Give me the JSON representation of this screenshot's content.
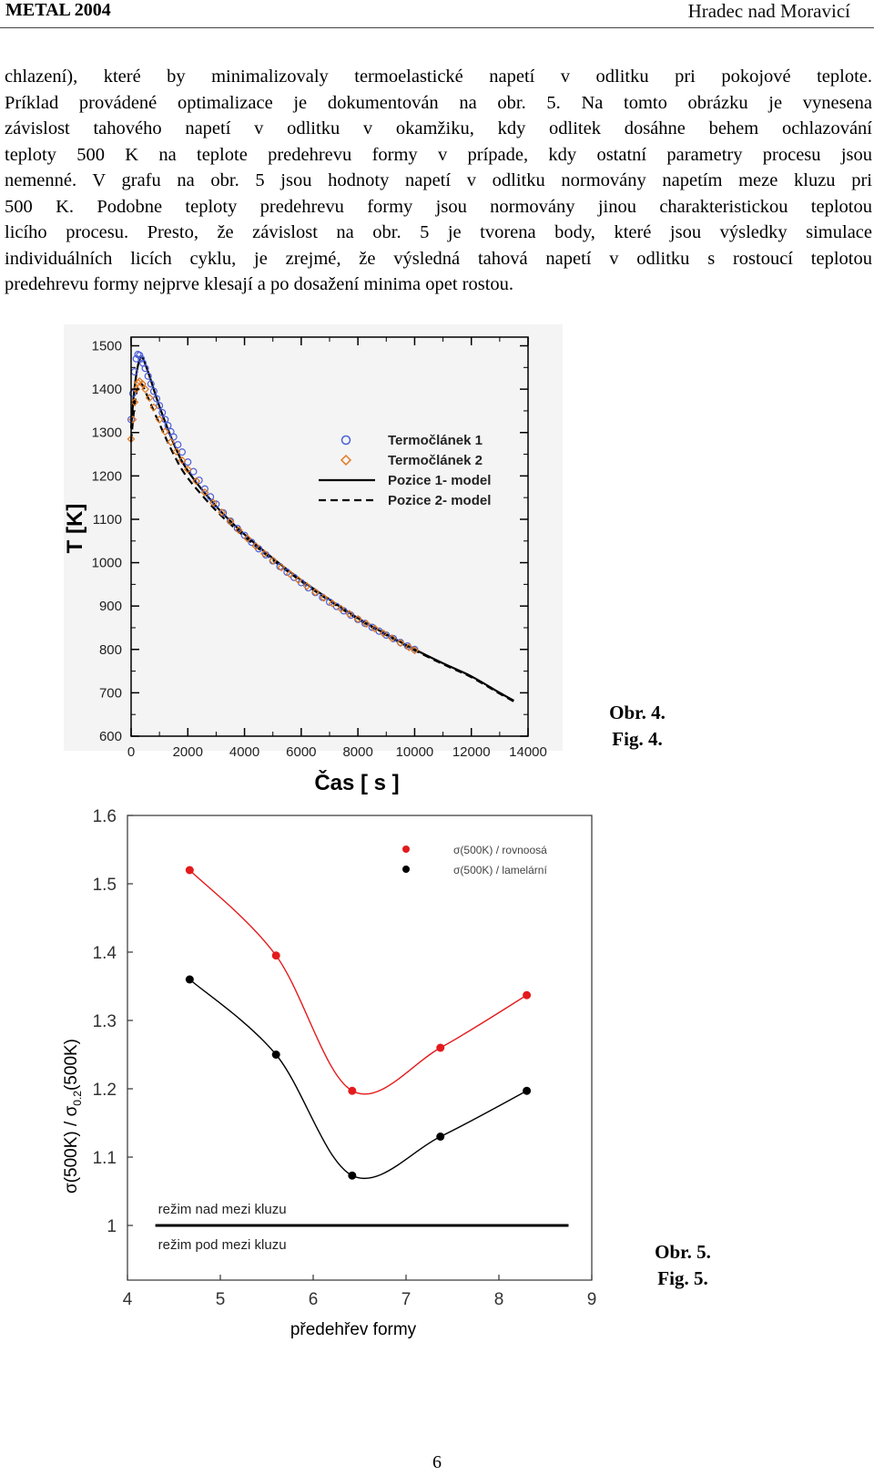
{
  "header": {
    "left": "METAL 2004",
    "right": "Hradec nad Moravicí"
  },
  "paragraph_lines": [
    "chlazení), které by minimalizovaly termoelastické napetí v odlitku pri pokojové teplote.",
    "Príklad provádené optimalizace je dokumentován na obr. 5. Na tomto obrázku je vynesena",
    "závislost tahového napetí v odlitku v okamžiku, kdy odlitek dosáhne behem ochlazování",
    "teploty 500 K na teplote predehrevu formy v prípade, kdy ostatní parametry procesu jsou",
    "nemenné. V grafu na obr. 5 jsou hodnoty napetí v odlitku normovány napetím meze kluzu pri",
    "500 K. Podobne teploty predehrevu formy jsou normovány jinou charakteristickou teplotou",
    "licího procesu. Presto, že závislost na obr. 5 je tvorena body, které jsou výsledky simulace",
    "individuálních licích cyklu, je zrejmé, že výsledná tahová napetí v odlitku s rostoucí teplotou",
    "predehrevu formy nejprve klesají a po dosažení minima opet rostou."
  ],
  "captions": {
    "fig4": {
      "obr": "Obr. 4.",
      "fig": "Fig. 4."
    },
    "fig5": {
      "obr": "Obr. 5.",
      "fig": "Fig. 5."
    }
  },
  "page_number": "6",
  "chart_data": [
    {
      "type": "line",
      "xlabel": "Čas [ s ]",
      "ylabel": "T [K]",
      "xlim": [
        0,
        14000
      ],
      "ylim": [
        600,
        1520
      ],
      "x_ticks": [
        "0",
        "2000",
        "4000",
        "6000",
        "8000",
        "10000",
        "12000",
        "14000"
      ],
      "y_ticks": [
        "600",
        "700",
        "800",
        "900",
        "1000",
        "1100",
        "1200",
        "1300",
        "1400",
        "1500"
      ],
      "legend_position": "top-right",
      "legend": [
        "Termočlánek 1",
        "Termočlánek 2",
        "Pozice 1- model",
        "Pozice 2- model"
      ],
      "colors": {
        "tc1": "#4a5fd8",
        "tc2": "#e07820",
        "model": "#000000"
      },
      "series": [
        {
          "name": "Pozice 1- model",
          "style": "solid",
          "x": [
            0,
            100,
            200,
            300,
            400,
            500,
            700,
            1000,
            1500,
            2000,
            3000,
            4000,
            5000,
            6000,
            7000,
            8000,
            9000,
            10000,
            11000,
            12000,
            13000,
            13500
          ],
          "y": [
            1310,
            1390,
            1440,
            1468,
            1472,
            1458,
            1420,
            1360,
            1275,
            1212,
            1130,
            1065,
            1010,
            960,
            915,
            872,
            835,
            800,
            768,
            738,
            700,
            682
          ]
        },
        {
          "name": "Pozice 2- model",
          "style": "dashed",
          "x": [
            0,
            100,
            200,
            300,
            400,
            500,
            700,
            1000,
            1500,
            2000,
            3000,
            4000,
            5000,
            6000,
            7000,
            8000,
            9000,
            10000,
            11000,
            12000,
            13000,
            13500
          ],
          "y": [
            1280,
            1350,
            1395,
            1412,
            1410,
            1395,
            1365,
            1320,
            1250,
            1195,
            1120,
            1060,
            1006,
            957,
            912,
            870,
            833,
            798,
            766,
            736,
            698,
            680
          ]
        },
        {
          "name": "Termočlánek 1",
          "style": "circle",
          "x": [
            0,
            60,
            120,
            180,
            240,
            300,
            360,
            420,
            500,
            600,
            700,
            800,
            900,
            1000,
            1100,
            1200,
            1300,
            1400,
            1500,
            1650,
            1800,
            2000,
            2200,
            2400,
            2600,
            2800,
            3000,
            3250,
            3500,
            3750,
            4000,
            4250,
            4500,
            4750,
            5000,
            5250,
            5500,
            5750,
            6000,
            6250,
            6500,
            6750,
            7000,
            7250,
            7500,
            7750,
            8000,
            8250,
            8500,
            8750,
            9000,
            9250,
            9500,
            9750,
            10000
          ],
          "y": [
            1330,
            1390,
            1440,
            1470,
            1480,
            1478,
            1470,
            1460,
            1448,
            1430,
            1412,
            1395,
            1378,
            1362,
            1346,
            1330,
            1316,
            1302,
            1290,
            1272,
            1255,
            1232,
            1210,
            1190,
            1170,
            1152,
            1135,
            1115,
            1096,
            1079,
            1063,
            1047,
            1032,
            1018,
            1004,
            991,
            978,
            966,
            954,
            942,
            931,
            920,
            909,
            899,
            889,
            879,
            869,
            860,
            851,
            842,
            833,
            825,
            816,
            808,
            800
          ]
        },
        {
          "name": "Termočlánek 2",
          "style": "diamond",
          "x": [
            0,
            60,
            120,
            180,
            240,
            300,
            400,
            500,
            650,
            800,
            1000,
            1200,
            1400,
            1600,
            1800,
            2000,
            2300,
            2600,
            2900,
            3200,
            3500,
            3800,
            4100,
            4400,
            4700,
            5000,
            5300,
            5600,
            5900,
            6200,
            6500,
            6800,
            7100,
            7400,
            7700,
            8000,
            8300,
            8600,
            8900,
            9200,
            9500,
            9800,
            10000
          ],
          "y": [
            1285,
            1330,
            1370,
            1400,
            1415,
            1418,
            1412,
            1400,
            1380,
            1358,
            1330,
            1302,
            1278,
            1256,
            1236,
            1215,
            1188,
            1162,
            1138,
            1116,
            1095,
            1075,
            1056,
            1038,
            1021,
            1005,
            989,
            974,
            960,
            946,
            932,
            919,
            906,
            894,
            882,
            870,
            859,
            848,
            837,
            826,
            815,
            805,
            798
          ]
        }
      ]
    },
    {
      "type": "line",
      "xlabel": "předehřev formy",
      "ylabel": "σ(500K) / σ0.2(500K)",
      "xlim": [
        4,
        9
      ],
      "ylim": [
        0.92,
        1.6
      ],
      "x_ticks": [
        "4",
        "5",
        "6",
        "7",
        "8",
        "9"
      ],
      "y_ticks": [
        "1",
        "1.1",
        "1.2",
        "1.3",
        "1.4",
        "1.5",
        "1.6"
      ],
      "legend_position": "top-right",
      "legend": [
        "σ(500K) / rovnoosá",
        "σ(500K) / lamelární"
      ],
      "annotations": {
        "above": "režim nad mezi kluzu",
        "below": "režim pod mezi kluzu"
      },
      "reference_line": {
        "y": 1.0,
        "x_from": 4.3,
        "x_to": 8.75
      },
      "colors": {
        "rovnoosa": "#e41a1c",
        "lamelarni": "#000000"
      },
      "series": [
        {
          "name": "σ(500K) / rovnoosá",
          "x": [
            4.67,
            5.6,
            6.42,
            7.37,
            8.3
          ],
          "y": [
            1.52,
            1.395,
            1.197,
            1.26,
            1.337
          ]
        },
        {
          "name": "σ(500K) / lamelární",
          "x": [
            4.67,
            5.6,
            6.42,
            7.37,
            8.3
          ],
          "y": [
            1.36,
            1.25,
            1.073,
            1.13,
            1.197
          ]
        }
      ]
    }
  ]
}
